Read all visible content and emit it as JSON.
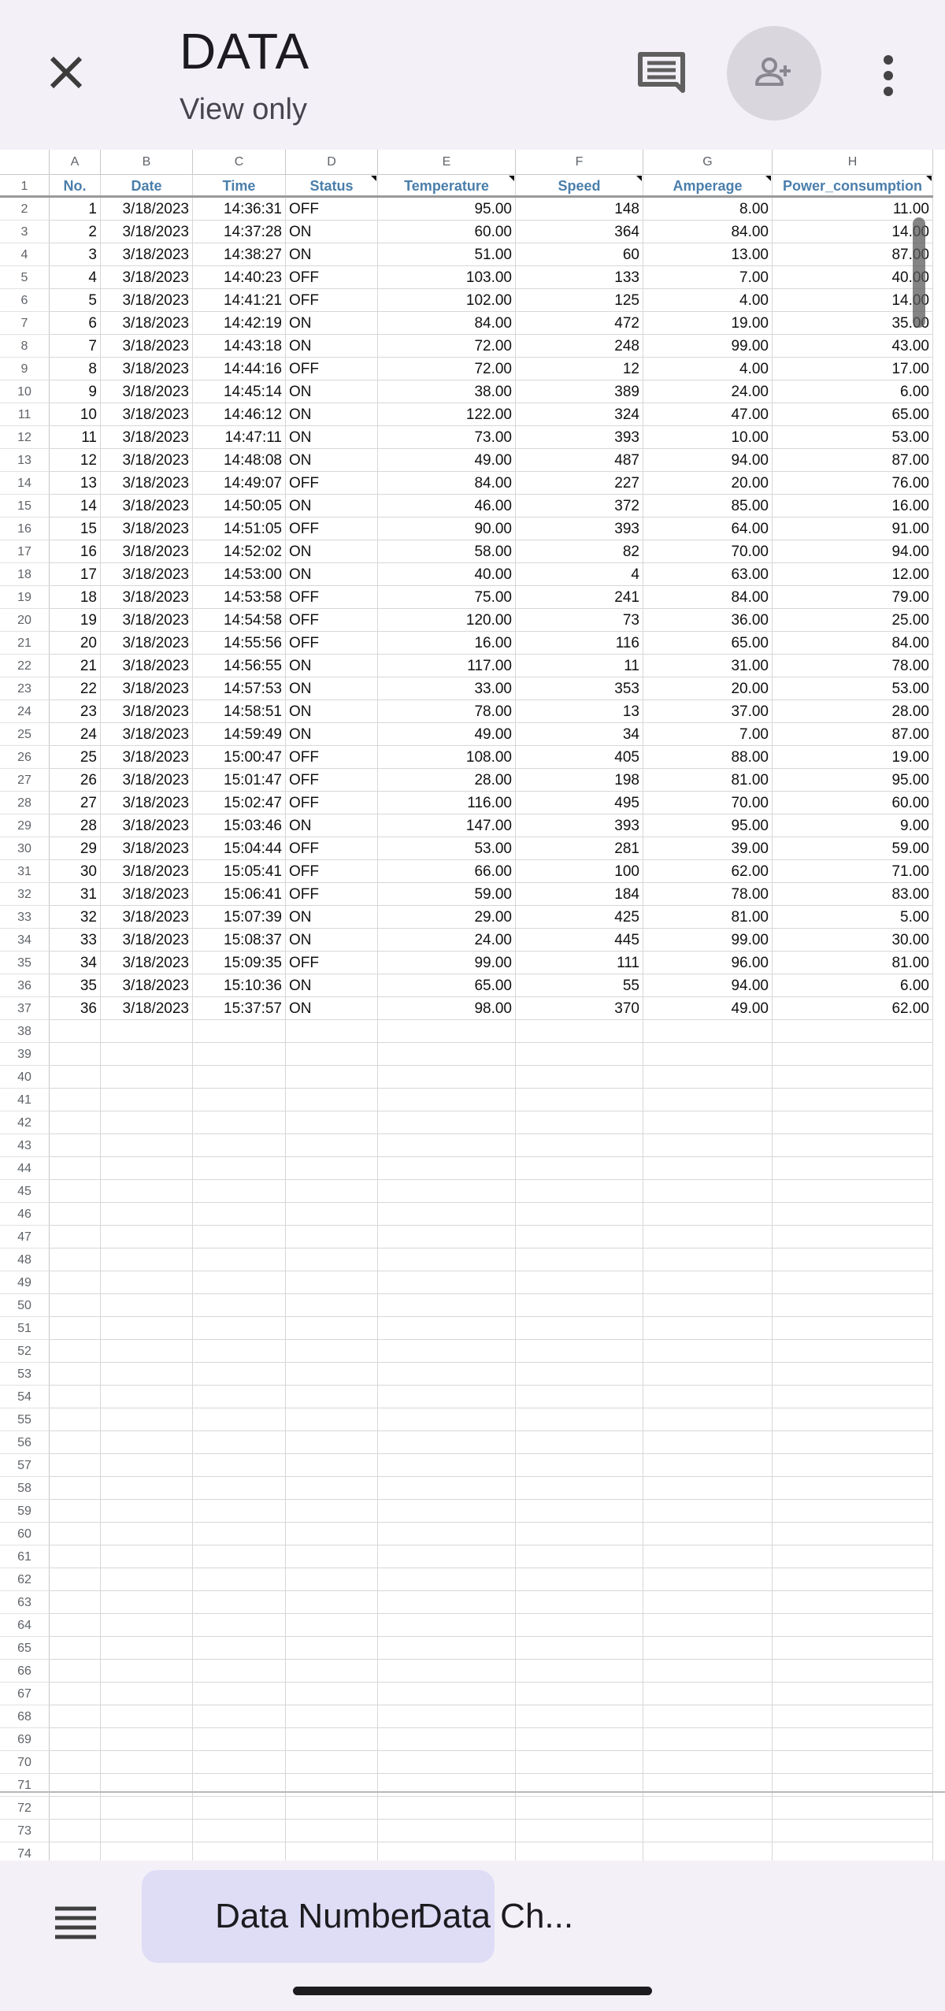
{
  "app_bar": {
    "title": "DATA",
    "subtitle": "View only",
    "close_icon": "close-icon",
    "comment_icon": "comment-icon",
    "share_icon": "person-add-icon",
    "more_icon": "more-vert-icon"
  },
  "sheet": {
    "column_letters": [
      "A",
      "B",
      "C",
      "D",
      "E",
      "F",
      "G",
      "H"
    ],
    "headers": [
      "No.",
      "Date",
      "Time",
      "Status",
      "Temperature",
      "Speed",
      "Amperage",
      "Power_consumption"
    ],
    "rows": [
      [
        "1",
        "3/18/2023",
        "14:36:31",
        "OFF",
        "95.00",
        "148",
        "8.00",
        "11.00"
      ],
      [
        "2",
        "3/18/2023",
        "14:37:28",
        "ON",
        "60.00",
        "364",
        "84.00",
        "14.00"
      ],
      [
        "3",
        "3/18/2023",
        "14:38:27",
        "ON",
        "51.00",
        "60",
        "13.00",
        "87.00"
      ],
      [
        "4",
        "3/18/2023",
        "14:40:23",
        "OFF",
        "103.00",
        "133",
        "7.00",
        "40.00"
      ],
      [
        "5",
        "3/18/2023",
        "14:41:21",
        "OFF",
        "102.00",
        "125",
        "4.00",
        "14.00"
      ],
      [
        "6",
        "3/18/2023",
        "14:42:19",
        "ON",
        "84.00",
        "472",
        "19.00",
        "35.00"
      ],
      [
        "7",
        "3/18/2023",
        "14:43:18",
        "ON",
        "72.00",
        "248",
        "99.00",
        "43.00"
      ],
      [
        "8",
        "3/18/2023",
        "14:44:16",
        "OFF",
        "72.00",
        "12",
        "4.00",
        "17.00"
      ],
      [
        "9",
        "3/18/2023",
        "14:45:14",
        "ON",
        "38.00",
        "389",
        "24.00",
        "6.00"
      ],
      [
        "10",
        "3/18/2023",
        "14:46:12",
        "ON",
        "122.00",
        "324",
        "47.00",
        "65.00"
      ],
      [
        "11",
        "3/18/2023",
        "14:47:11",
        "ON",
        "73.00",
        "393",
        "10.00",
        "53.00"
      ],
      [
        "12",
        "3/18/2023",
        "14:48:08",
        "ON",
        "49.00",
        "487",
        "94.00",
        "87.00"
      ],
      [
        "13",
        "3/18/2023",
        "14:49:07",
        "OFF",
        "84.00",
        "227",
        "20.00",
        "76.00"
      ],
      [
        "14",
        "3/18/2023",
        "14:50:05",
        "ON",
        "46.00",
        "372",
        "85.00",
        "16.00"
      ],
      [
        "15",
        "3/18/2023",
        "14:51:05",
        "OFF",
        "90.00",
        "393",
        "64.00",
        "91.00"
      ],
      [
        "16",
        "3/18/2023",
        "14:52:02",
        "ON",
        "58.00",
        "82",
        "70.00",
        "94.00"
      ],
      [
        "17",
        "3/18/2023",
        "14:53:00",
        "ON",
        "40.00",
        "4",
        "63.00",
        "12.00"
      ],
      [
        "18",
        "3/18/2023",
        "14:53:58",
        "OFF",
        "75.00",
        "241",
        "84.00",
        "79.00"
      ],
      [
        "19",
        "3/18/2023",
        "14:54:58",
        "OFF",
        "120.00",
        "73",
        "36.00",
        "25.00"
      ],
      [
        "20",
        "3/18/2023",
        "14:55:56",
        "OFF",
        "16.00",
        "116",
        "65.00",
        "84.00"
      ],
      [
        "21",
        "3/18/2023",
        "14:56:55",
        "ON",
        "117.00",
        "11",
        "31.00",
        "78.00"
      ],
      [
        "22",
        "3/18/2023",
        "14:57:53",
        "ON",
        "33.00",
        "353",
        "20.00",
        "53.00"
      ],
      [
        "23",
        "3/18/2023",
        "14:58:51",
        "ON",
        "78.00",
        "13",
        "37.00",
        "28.00"
      ],
      [
        "24",
        "3/18/2023",
        "14:59:49",
        "ON",
        "49.00",
        "34",
        "7.00",
        "87.00"
      ],
      [
        "25",
        "3/18/2023",
        "15:00:47",
        "OFF",
        "108.00",
        "405",
        "88.00",
        "19.00"
      ],
      [
        "26",
        "3/18/2023",
        "15:01:47",
        "OFF",
        "28.00",
        "198",
        "81.00",
        "95.00"
      ],
      [
        "27",
        "3/18/2023",
        "15:02:47",
        "OFF",
        "116.00",
        "495",
        "70.00",
        "60.00"
      ],
      [
        "28",
        "3/18/2023",
        "15:03:46",
        "ON",
        "147.00",
        "393",
        "95.00",
        "9.00"
      ],
      [
        "29",
        "3/18/2023",
        "15:04:44",
        "OFF",
        "53.00",
        "281",
        "39.00",
        "59.00"
      ],
      [
        "30",
        "3/18/2023",
        "15:05:41",
        "OFF",
        "66.00",
        "100",
        "62.00",
        "71.00"
      ],
      [
        "31",
        "3/18/2023",
        "15:06:41",
        "OFF",
        "59.00",
        "184",
        "78.00",
        "83.00"
      ],
      [
        "32",
        "3/18/2023",
        "15:07:39",
        "ON",
        "29.00",
        "425",
        "81.00",
        "5.00"
      ],
      [
        "33",
        "3/18/2023",
        "15:08:37",
        "ON",
        "24.00",
        "445",
        "99.00",
        "30.00"
      ],
      [
        "34",
        "3/18/2023",
        "15:09:35",
        "OFF",
        "99.00",
        "111",
        "96.00",
        "81.00"
      ],
      [
        "35",
        "3/18/2023",
        "15:10:36",
        "ON",
        "65.00",
        "55",
        "94.00",
        "6.00"
      ],
      [
        "36",
        "3/18/2023",
        "15:37:57",
        "ON",
        "98.00",
        "370",
        "49.00",
        "62.00"
      ]
    ],
    "row_numbers_start": 1,
    "row_numbers_end": 74,
    "header_text_color": "#4a7eab"
  },
  "tabs": {
    "menu_icon": "menu-icon",
    "items": [
      {
        "label": "Data Number",
        "active": true
      },
      {
        "label": "Data Ch...",
        "active": false
      }
    ],
    "active_color": "#dfdcf6"
  }
}
